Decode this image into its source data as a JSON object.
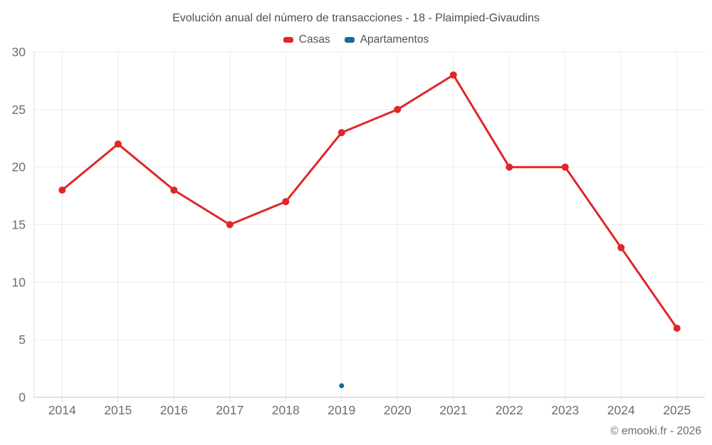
{
  "title": "Evolución anual del número de transacciones - 18 - Plaimpied-Givaudins",
  "legend": {
    "items": [
      {
        "label": "Casas",
        "color": "#df2727"
      },
      {
        "label": "Apartamentos",
        "color": "#15699f"
      }
    ]
  },
  "footer": {
    "credit": "© emooki.fr - 2026"
  },
  "colors": {
    "grid": "#ececec",
    "axis_line": "#c7c7c7",
    "tick_mark": "#dcdcdc",
    "tick_text": "#6d6d6d",
    "background": "#ffffff"
  },
  "chart_data": {
    "type": "line",
    "title": "Evolución anual del número de transacciones - 18 - Plaimpied-Givaudins",
    "categories": [
      "2014",
      "2015",
      "2016",
      "2017",
      "2018",
      "2019",
      "2020",
      "2021",
      "2022",
      "2023",
      "2024",
      "2025"
    ],
    "series": [
      {
        "name": "Casas",
        "color": "#df2727",
        "point_radius": 5,
        "line_width": 3,
        "values": [
          18,
          22,
          18,
          15,
          17,
          23,
          25,
          28,
          20,
          20,
          13,
          6
        ]
      },
      {
        "name": "Apartamentos",
        "color": "#15699f",
        "point_radius": 3.5,
        "line_width": 3,
        "values": [
          null,
          null,
          null,
          null,
          null,
          1,
          null,
          null,
          null,
          null,
          null,
          null
        ]
      }
    ],
    "xlabel": "",
    "ylabel": "",
    "ylim": [
      0,
      30
    ],
    "yticks": [
      0,
      5,
      10,
      15,
      20,
      25,
      30
    ],
    "grid": true,
    "legend_position": "top"
  }
}
